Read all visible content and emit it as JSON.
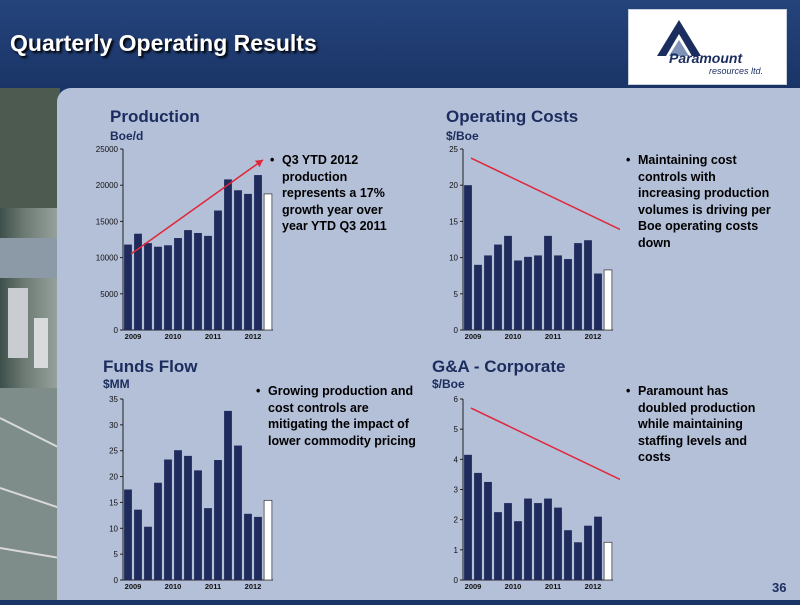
{
  "slide": {
    "title": "Quarterly Operating Results",
    "page_number": "36",
    "logo": {
      "name": "Paramount",
      "sub": "resources ltd."
    },
    "colors": {
      "header_bg": "#1b3566",
      "panel_bg": "#b4bfd8",
      "bar_fill": "#1f2b5c",
      "arrow": "#e0263a"
    }
  },
  "panels": {
    "production": {
      "title": "Production",
      "unit": "Boe/d",
      "bullet": "Q3 YTD 2012 production represents a 17% growth year over year YTD Q3 2011"
    },
    "opcosts": {
      "title": "Operating Costs",
      "unit": "$/Boe",
      "bullet": "Maintaining cost controls with increasing production volumes is driving per Boe operating costs down"
    },
    "funds": {
      "title": "Funds Flow",
      "unit": "$MM",
      "bullet": "Growing production and cost controls are mitigating the impact of lower commodity pricing"
    },
    "ga": {
      "title": "G&A - Corporate",
      "unit": "$/Boe",
      "bullet": "Paramount has doubled production while maintaining staffing levels and costs"
    }
  },
  "chart_data": [
    {
      "id": "production",
      "type": "bar",
      "ylim": [
        0,
        25000
      ],
      "yticks": [
        0,
        5000,
        10000,
        15000,
        20000,
        25000
      ],
      "xtick_labels": [
        "2009",
        "2010",
        "2011",
        "2012"
      ],
      "values": [
        11800,
        13300,
        12000,
        11500,
        11700,
        12700,
        13800,
        13400,
        13000,
        16500,
        20800,
        19300,
        18800,
        21400,
        18800
      ],
      "last_bar_highlight": true,
      "trend_arrow": "up"
    },
    {
      "id": "opcosts",
      "type": "bar",
      "ylim": [
        0,
        25
      ],
      "yticks": [
        0,
        5,
        10,
        15,
        20,
        25
      ],
      "xtick_labels": [
        "2009",
        "2010",
        "2011",
        "2012"
      ],
      "values": [
        20.0,
        9.0,
        10.3,
        11.8,
        13.0,
        9.6,
        10.1,
        10.3,
        13.0,
        10.3,
        9.8,
        12.0,
        12.4,
        7.8,
        8.3
      ],
      "last_bar_highlight": true,
      "trend_arrow": "down"
    },
    {
      "id": "funds",
      "type": "bar",
      "ylim": [
        0,
        35
      ],
      "yticks": [
        0,
        5,
        10,
        15,
        20,
        25,
        30,
        35
      ],
      "xtick_labels": [
        "2009",
        "2010",
        "2011",
        "2012"
      ],
      "values": [
        17.5,
        13.6,
        10.3,
        18.8,
        23.3,
        25.1,
        24.0,
        21.2,
        13.9,
        23.2,
        32.7,
        26.0,
        12.8,
        12.2,
        15.4
      ],
      "last_bar_highlight": true,
      "trend_arrow": "none"
    },
    {
      "id": "ga",
      "type": "bar",
      "ylim": [
        0,
        6
      ],
      "yticks": [
        0,
        1,
        2,
        3,
        4,
        5,
        6
      ],
      "xtick_labels": [
        "2009",
        "2010",
        "2011",
        "2012"
      ],
      "values": [
        4.15,
        3.55,
        3.25,
        2.25,
        2.55,
        1.95,
        2.7,
        2.55,
        2.7,
        2.4,
        1.65,
        1.25,
        1.8,
        2.1,
        1.25
      ],
      "last_bar_highlight": true,
      "trend_arrow": "down"
    }
  ]
}
